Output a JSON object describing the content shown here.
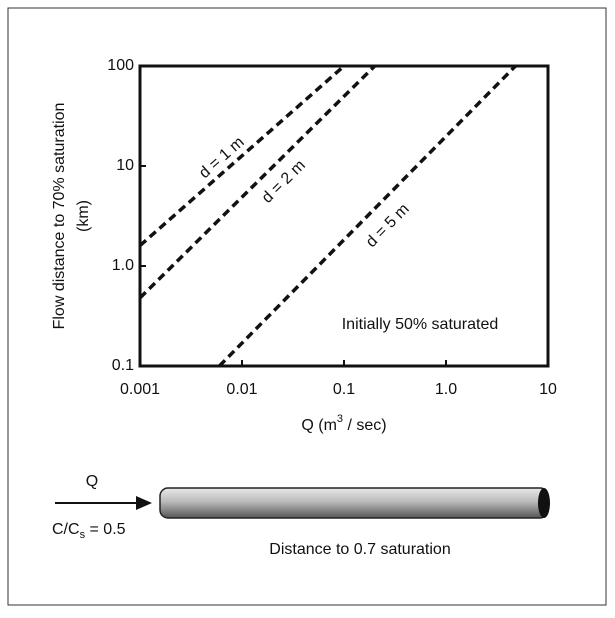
{
  "chart_data": {
    "type": "line",
    "y_label": [
      "Flow distance to 70% saturation",
      "(km)"
    ],
    "x_label": [
      "Q (m",
      "3",
      " / sec)"
    ],
    "xscale": "log",
    "yscale": "log",
    "xlim": [
      0.001,
      10
    ],
    "ylim": [
      0.1,
      100
    ],
    "xticks": [
      0.001,
      0.01,
      0.1,
      {
        "value": 1,
        "label": "1.0"
      },
      10
    ],
    "yticks": [
      0.1,
      {
        "value": 1,
        "label": "1.0"
      },
      10,
      100
    ],
    "series": [
      {
        "name": "d = 1 m",
        "color": "#111111",
        "x": [
          0.001,
          0.1
        ],
        "values": [
          1.6,
          100
        ]
      },
      {
        "name": "d = 2 m",
        "color": "#111111",
        "x": [
          0.001,
          0.2
        ],
        "values": [
          0.48,
          100
        ]
      },
      {
        "name": "d = 5 m",
        "color": "#111111",
        "x": [
          0.006,
          4.8
        ],
        "values": [
          0.1,
          100
        ]
      }
    ],
    "annotation": "Initially 50% saturated"
  },
  "diagram": {
    "flow_label": "Q",
    "ratio_label": [
      "C/C",
      "s",
      " = 0.5"
    ],
    "pipe_label": "Distance to 0.7 saturation"
  }
}
